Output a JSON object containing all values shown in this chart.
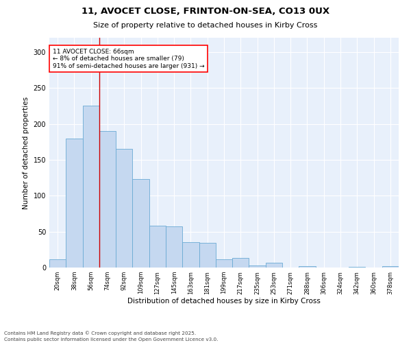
{
  "title_line1": "11, AVOCET CLOSE, FRINTON-ON-SEA, CO13 0UX",
  "title_line2": "Size of property relative to detached houses in Kirby Cross",
  "xlabel": "Distribution of detached houses by size in Kirby Cross",
  "ylabel": "Number of detached properties",
  "bar_color": "#c5d8f0",
  "bar_edge_color": "#6aaad4",
  "categories": [
    "20sqm",
    "38sqm",
    "56sqm",
    "74sqm",
    "92sqm",
    "109sqm",
    "127sqm",
    "145sqm",
    "163sqm",
    "181sqm",
    "199sqm",
    "217sqm",
    "235sqm",
    "253sqm",
    "271sqm",
    "288sqm",
    "306sqm",
    "324sqm",
    "342sqm",
    "360sqm",
    "378sqm"
  ],
  "values": [
    11,
    180,
    225,
    190,
    165,
    123,
    58,
    57,
    35,
    34,
    11,
    13,
    3,
    7,
    0,
    2,
    0,
    0,
    1,
    0,
    2
  ],
  "ylim": [
    0,
    320
  ],
  "yticks": [
    0,
    50,
    100,
    150,
    200,
    250,
    300
  ],
  "red_line_x": 2.5,
  "annotation_text": "11 AVOCET CLOSE: 66sqm\n← 8% of detached houses are smaller (79)\n91% of semi-detached houses are larger (931) →",
  "annotation_box_color": "white",
  "annotation_box_edge_color": "red",
  "background_color": "#e8f0fb",
  "grid_color": "white",
  "footer_line1": "Contains HM Land Registry data © Crown copyright and database right 2025.",
  "footer_line2": "Contains public sector information licensed under the Open Government Licence v3.0."
}
